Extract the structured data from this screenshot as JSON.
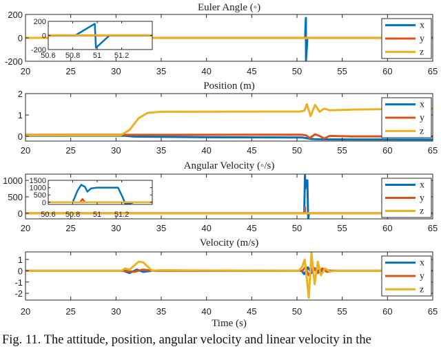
{
  "xlabel": "Time (s)",
  "caption": "Fig. 11.   The attitude, position, angular velocity and linear velocity in the",
  "colors": {
    "x": "#0072BD",
    "y": "#D95319",
    "z": "#EDB120"
  },
  "chart_data": [
    {
      "type": "line",
      "title": "Euler Angle (◦)",
      "xlim": [
        20,
        65
      ],
      "ylim": [
        -200,
        200
      ],
      "xticks": [
        20,
        25,
        30,
        35,
        40,
        45,
        50,
        55,
        60,
        65
      ],
      "yticks": [
        200,
        0,
        -200
      ],
      "legend": [
        "x",
        "y",
        "z"
      ],
      "legend_position": "right",
      "series": [
        {
          "name": "x",
          "points": [
            [
              20,
              0
            ],
            [
              50.9,
              0
            ],
            [
              50.98,
              170
            ],
            [
              51.0,
              -190
            ],
            [
              51.15,
              0
            ],
            [
              65,
              0
            ]
          ]
        },
        {
          "name": "y",
          "points": [
            [
              20,
              0
            ],
            [
              50.95,
              0
            ],
            [
              51.0,
              8
            ],
            [
              51.05,
              -6
            ],
            [
              51.1,
              0
            ],
            [
              65,
              0
            ]
          ]
        },
        {
          "name": "z",
          "points": [
            [
              20,
              0
            ],
            [
              34,
              2
            ],
            [
              35,
              -2
            ],
            [
              65,
              -2
            ]
          ]
        }
      ],
      "inset": {
        "xlim": [
          50.6,
          51.45
        ],
        "ylim": [
          -200,
          200
        ],
        "xticks": [
          50.6,
          50.8,
          51,
          51.2
        ],
        "yticks": [
          200,
          0,
          -200
        ],
        "series": [
          {
            "name": "x",
            "points": [
              [
                50.6,
                0
              ],
              [
                50.82,
                0
              ],
              [
                50.98,
                165
              ],
              [
                50.99,
                -175
              ],
              [
                51.1,
                0
              ],
              [
                51.45,
                0
              ]
            ]
          },
          {
            "name": "y",
            "points": [
              [
                50.6,
                0
              ],
              [
                51.45,
                0
              ]
            ]
          },
          {
            "name": "z",
            "points": [
              [
                50.6,
                5
              ],
              [
                51.45,
                5
              ]
            ]
          }
        ]
      }
    },
    {
      "type": "line",
      "title": "Position (m)",
      "xlim": [
        20,
        65
      ],
      "ylim": [
        -0.22,
        2
      ],
      "xticks": [
        20,
        25,
        30,
        35,
        40,
        45,
        50,
        55,
        60,
        65
      ],
      "yticks": [
        2,
        1,
        0
      ],
      "legend": [
        "x",
        "y",
        "z"
      ],
      "legend_position": "right",
      "series": [
        {
          "name": "x",
          "points": [
            [
              20,
              0.03
            ],
            [
              31,
              0.03
            ],
            [
              32,
              -0.01
            ],
            [
              40,
              -0.04
            ],
            [
              50.5,
              -0.05
            ],
            [
              51,
              -0.08
            ],
            [
              51.5,
              -0.12
            ],
            [
              52,
              -0.13
            ],
            [
              53,
              -0.14
            ],
            [
              65,
              -0.15
            ]
          ]
        },
        {
          "name": "y",
          "points": [
            [
              20,
              0.07
            ],
            [
              50.5,
              0.08
            ],
            [
              51,
              0.05
            ],
            [
              51.4,
              -0.08
            ],
            [
              52,
              0.1
            ],
            [
              52.5,
              0.02
            ],
            [
              53,
              -0.1
            ],
            [
              53.6,
              0.02
            ],
            [
              56,
              0.0
            ],
            [
              65,
              0.0
            ]
          ]
        },
        {
          "name": "z",
          "points": [
            [
              20,
              0.05
            ],
            [
              30.5,
              0.05
            ],
            [
              31.5,
              0.3
            ],
            [
              32.5,
              0.85
            ],
            [
              33.5,
              1.1
            ],
            [
              35,
              1.15
            ],
            [
              50.3,
              1.16
            ],
            [
              50.8,
              1.2
            ],
            [
              51.1,
              1.5
            ],
            [
              51.5,
              0.95
            ],
            [
              52,
              1.47
            ],
            [
              52.5,
              1.15
            ],
            [
              53,
              1.3
            ],
            [
              53.6,
              1.22
            ],
            [
              56,
              1.25
            ],
            [
              65,
              1.3
            ]
          ]
        }
      ]
    },
    {
      "type": "line",
      "title": "Angular Velocity (◦/s)",
      "xlim": [
        20,
        65
      ],
      "ylim": [
        -170,
        1190
      ],
      "xticks": [
        20,
        25,
        30,
        35,
        40,
        45,
        50,
        55,
        60,
        65
      ],
      "yticks": [
        1000,
        500,
        0
      ],
      "legend": [
        "x",
        "y",
        "z"
      ],
      "legend_position": "right",
      "series": [
        {
          "name": "x",
          "points": [
            [
              20,
              0
            ],
            [
              50.8,
              0
            ],
            [
              50.88,
              1150
            ],
            [
              50.92,
              750
            ],
            [
              50.96,
              1000
            ],
            [
              51.15,
              1000
            ],
            [
              51.22,
              0
            ],
            [
              51.25,
              -170
            ],
            [
              51.32,
              0
            ],
            [
              65,
              0
            ]
          ]
        },
        {
          "name": "y",
          "points": [
            [
              20,
              0
            ],
            [
              50.85,
              0
            ],
            [
              50.88,
              180
            ],
            [
              50.9,
              0
            ],
            [
              65,
              0
            ]
          ]
        },
        {
          "name": "z",
          "points": [
            [
              20,
              0
            ],
            [
              65,
              0
            ]
          ]
        }
      ],
      "inset": {
        "xlim": [
          50.6,
          51.45
        ],
        "ylim": [
          -150,
          1500
        ],
        "xticks": [
          50.6,
          50.8,
          51,
          51.2
        ],
        "yticks": [
          1500,
          1000,
          500,
          0
        ],
        "series": [
          {
            "name": "x",
            "points": [
              [
                50.6,
                0
              ],
              [
                50.8,
                0
              ],
              [
                50.84,
                800
              ],
              [
                50.87,
                1200
              ],
              [
                50.9,
                1050
              ],
              [
                50.92,
                720
              ],
              [
                50.95,
                950
              ],
              [
                51.0,
                1000
              ],
              [
                51.17,
                1000
              ],
              [
                51.21,
                300
              ],
              [
                51.23,
                -120
              ],
              [
                51.26,
                -100
              ],
              [
                51.3,
                0
              ],
              [
                51.45,
                0
              ]
            ]
          },
          {
            "name": "y",
            "points": [
              [
                50.6,
                0
              ],
              [
                50.86,
                0
              ],
              [
                50.88,
                220
              ],
              [
                50.9,
                0
              ],
              [
                51.45,
                0
              ]
            ]
          },
          {
            "name": "z",
            "points": [
              [
                50.6,
                0
              ],
              [
                51.45,
                0
              ]
            ]
          }
        ]
      }
    },
    {
      "type": "line",
      "title": "Velocity (m/s)",
      "xlim": [
        20,
        65
      ],
      "ylim": [
        -2.6,
        1.67
      ],
      "xticks": [
        20,
        25,
        30,
        35,
        40,
        45,
        50,
        55,
        60,
        65
      ],
      "yticks": [
        1,
        0,
        -1,
        -2
      ],
      "legend": [
        "x",
        "y",
        "z"
      ],
      "legend_position": "right",
      "series": [
        {
          "name": "x",
          "points": [
            [
              20,
              0
            ],
            [
              30.8,
              0
            ],
            [
              31.5,
              -0.2
            ],
            [
              32.3,
              0.1
            ],
            [
              33,
              -0.1
            ],
            [
              34,
              0
            ],
            [
              50.5,
              0
            ],
            [
              50.8,
              -0.3
            ],
            [
              51.2,
              0.3
            ],
            [
              51.6,
              -0.2
            ],
            [
              52,
              0.2
            ],
            [
              52.5,
              -0.1
            ],
            [
              53,
              0.05
            ],
            [
              54,
              0
            ],
            [
              65,
              0
            ]
          ]
        },
        {
          "name": "y",
          "points": [
            [
              20,
              0
            ],
            [
              31,
              0
            ],
            [
              32,
              -0.1
            ],
            [
              33,
              0.1
            ],
            [
              34,
              0
            ],
            [
              50.6,
              0
            ],
            [
              50.9,
              0.3
            ],
            [
              51.3,
              -0.4
            ],
            [
              51.8,
              0.3
            ],
            [
              52.3,
              -0.2
            ],
            [
              52.8,
              0.2
            ],
            [
              53.3,
              -0.1
            ],
            [
              54,
              0
            ],
            [
              65,
              0
            ]
          ]
        },
        {
          "name": "z",
          "points": [
            [
              20,
              0
            ],
            [
              30.6,
              0
            ],
            [
              31,
              0.2
            ],
            [
              31.5,
              0.1
            ],
            [
              32.5,
              0.8
            ],
            [
              33,
              0.75
            ],
            [
              34,
              0
            ],
            [
              34.8,
              0.05
            ],
            [
              50.2,
              0
            ],
            [
              50.6,
              0.4
            ],
            [
              50.85,
              1.0
            ],
            [
              51.05,
              -0.4
            ],
            [
              51.3,
              -2.4
            ],
            [
              51.6,
              1.6
            ],
            [
              51.95,
              -1.2
            ],
            [
              52.3,
              0.8
            ],
            [
              52.65,
              -0.4
            ],
            [
              53.1,
              0.2
            ],
            [
              53.6,
              -0.05
            ],
            [
              54.5,
              0
            ],
            [
              65,
              0
            ]
          ]
        }
      ]
    }
  ]
}
